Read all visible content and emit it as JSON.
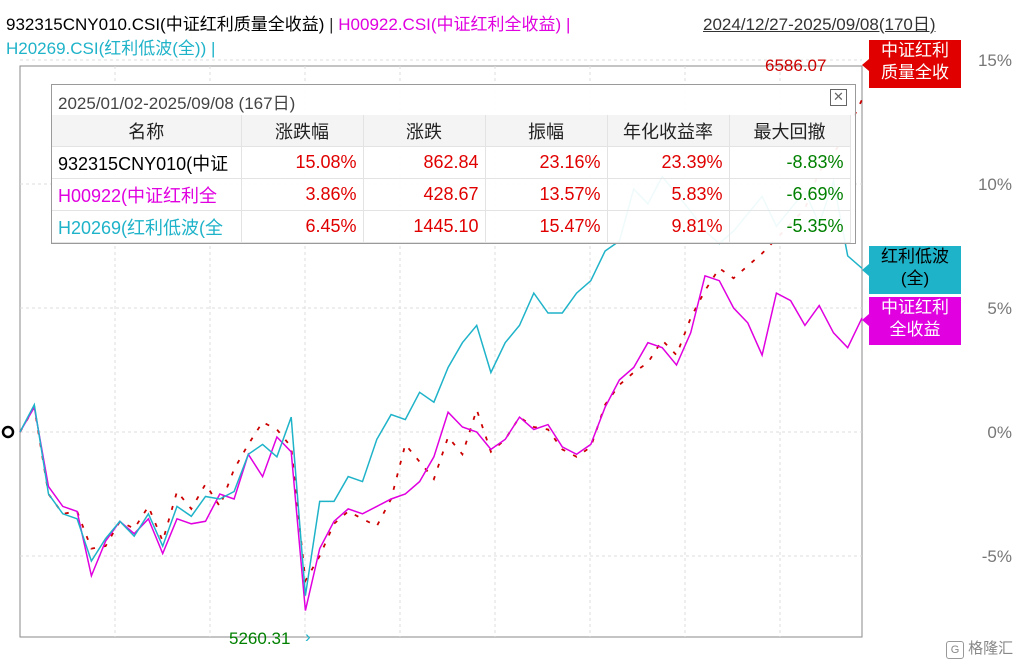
{
  "header": {
    "series1": "932315CNY010.CSI(中证红利质量全收益)",
    "sep1": "|",
    "series2": "H00922.CSI(中证红利全收益)",
    "sep2": "|",
    "series3": "H20269.CSI(红利低波(全))",
    "sep3": "|",
    "date_range": "2024/12/27-2025/09/08(170日)"
  },
  "stats": {
    "title": "2025/01/02-2025/09/08 (167日)",
    "close_icon": "close-icon",
    "columns": [
      "名称",
      "涨跌幅",
      "涨跌",
      "振幅",
      "年化收益率",
      "最大回撤"
    ],
    "rows": [
      {
        "name": "932315CNY010(中证",
        "change_pct": "15.08%",
        "change": "862.84",
        "amplitude": "23.16%",
        "annualized": "23.39%",
        "max_drawdown": "-8.83%"
      },
      {
        "name": "H00922(中证红利全",
        "change_pct": "3.86%",
        "change": "428.67",
        "amplitude": "13.57%",
        "annualized": "5.83%",
        "max_drawdown": "-6.69%"
      },
      {
        "name": "H20269(红利低波(全",
        "change_pct": "6.45%",
        "change": "1445.10",
        "amplitude": "15.47%",
        "annualized": "9.81%",
        "max_drawdown": "-5.35%"
      }
    ]
  },
  "end_labels": {
    "s1": [
      "中证红利",
      "质量全收"
    ],
    "s3": [
      "红利低波",
      "(全)"
    ],
    "s2": [
      "中证红利",
      "全收益"
    ]
  },
  "annotations": {
    "high": "6586.07",
    "low": "5260.31"
  },
  "watermark": "格隆汇",
  "chart_data": {
    "type": "line",
    "y_unit": "%",
    "ylim": [
      -8,
      15
    ],
    "y_ticks": [
      15,
      10,
      5,
      0,
      -5
    ],
    "y_tick_labels": [
      "15%",
      "10%",
      "5%",
      "0%",
      "-5%"
    ],
    "grid": true,
    "series": [
      {
        "name": "932315CNY010.CSI(中证红利质量全收益)",
        "color": "#cc0000",
        "style": "dashed",
        "values": [
          0,
          1.0,
          -2.5,
          -3.3,
          -3.2,
          -4.7,
          -4.6,
          -3.6,
          -3.9,
          -3.0,
          -4.4,
          -2.4,
          -3.1,
          -2.1,
          -3.0,
          -1.5,
          -0.5,
          0.4,
          0.1,
          -0.6,
          -6.0,
          -5.0,
          -3.7,
          -3.2,
          -3.5,
          -3.8,
          -2.7,
          -0.5,
          -1.2,
          -1.9,
          -0.2,
          -0.9,
          0.9,
          -0.8,
          -0.3,
          0.6,
          0.2,
          0.1,
          -0.7,
          -1.0,
          -0.6,
          1.1,
          1.9,
          2.4,
          2.8,
          3.7,
          3.1,
          4.6,
          5.7,
          6.6,
          6.2,
          6.7,
          7.2,
          7.8,
          8.4,
          9.0,
          10.5,
          11.2,
          12.2,
          13.4
        ]
      },
      {
        "name": "H00922.CSI(中证红利全收益)",
        "color": "#e000e0",
        "values": [
          0,
          1.0,
          -2.2,
          -3.0,
          -3.2,
          -5.8,
          -4.4,
          -3.6,
          -4.1,
          -3.5,
          -4.9,
          -3.5,
          -3.7,
          -3.6,
          -2.5,
          -2.7,
          -0.9,
          -1.8,
          -0.2,
          -0.8,
          -7.2,
          -4.7,
          -3.6,
          -3.1,
          -3.3,
          -3.0,
          -2.7,
          -2.5,
          -2.0,
          -1.0,
          0.8,
          0.2,
          0.0,
          -0.7,
          -0.3,
          0.6,
          0.1,
          0.3,
          -0.6,
          -0.9,
          -0.5,
          1.0,
          2.1,
          2.6,
          3.6,
          3.4,
          2.7,
          4.0,
          6.3,
          6.1,
          5.0,
          4.4,
          3.1,
          5.6,
          5.3,
          4.3,
          5.1,
          4.0,
          3.4,
          4.6
        ]
      },
      {
        "name": "H20269.CSI(红利低波(全))",
        "color": "#1fb3c9",
        "values": [
          0,
          1.1,
          -2.5,
          -3.3,
          -3.5,
          -5.2,
          -4.3,
          -3.6,
          -4.2,
          -3.3,
          -4.6,
          -3.0,
          -3.4,
          -2.6,
          -2.7,
          -2.4,
          -0.9,
          -0.5,
          -1.0,
          0.6,
          -6.6,
          -2.8,
          -2.8,
          -1.8,
          -2.0,
          -0.3,
          0.7,
          0.5,
          1.6,
          1.2,
          2.6,
          3.6,
          4.3,
          2.4,
          3.6,
          4.3,
          5.6,
          4.8,
          4.8,
          5.6,
          6.1,
          7.3,
          7.7,
          9.8,
          9.2,
          10.3,
          9.6,
          8.9,
          8.1,
          7.6,
          8.1,
          8.8,
          9.5,
          8.3,
          9.0,
          9.7,
          8.4,
          10.1,
          7.1,
          6.6
        ]
      }
    ]
  }
}
